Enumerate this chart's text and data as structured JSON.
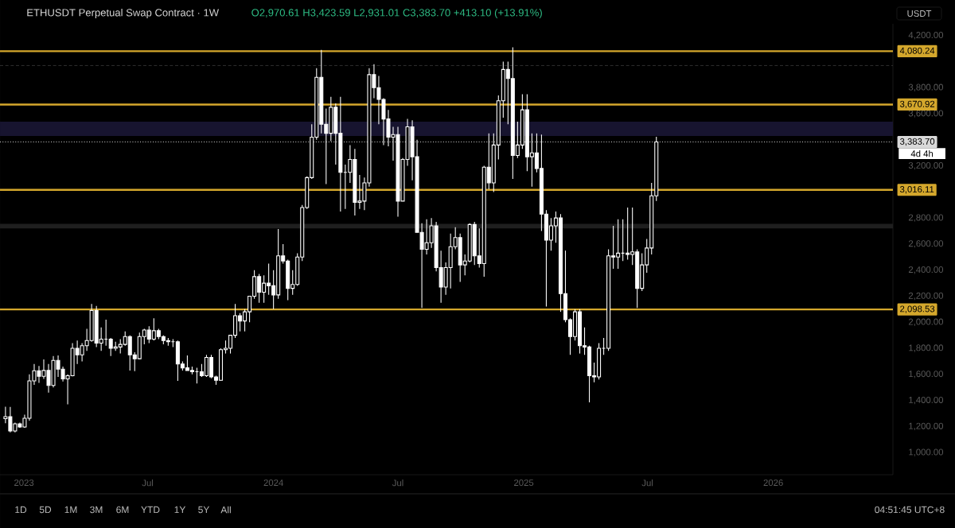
{
  "chart_data": {
    "type": "candlestick",
    "title": "ETHUSDT Perpetual Swap Contract · 1W",
    "subtitle": "O2,970.61 H3,423.59 L2,931.01 C3,383.70 +413.10 (+13.91%)",
    "color": "#ffffff",
    "x": [
      "2022-12-05",
      "2022-12-12",
      "2022-12-19",
      "2022-12-26",
      "2023-01-02",
      "2023-01-09",
      "2023-01-16",
      "2023-01-23",
      "2023-01-30",
      "2023-02-06",
      "2023-02-13",
      "2023-02-20",
      "2023-02-27",
      "2023-03-06",
      "2023-03-13",
      "2023-03-20",
      "2023-03-27",
      "2023-04-03",
      "2023-04-10",
      "2023-04-17",
      "2023-04-24",
      "2023-05-01",
      "2023-05-08",
      "2023-05-15",
      "2023-05-22",
      "2023-05-29",
      "2023-06-05",
      "2023-06-12",
      "2023-06-19",
      "2023-06-26",
      "2023-07-03",
      "2023-07-10",
      "2023-07-17",
      "2023-07-24",
      "2023-07-31",
      "2023-08-07",
      "2023-08-14",
      "2023-08-21",
      "2023-08-28",
      "2023-09-04",
      "2023-09-11",
      "2023-09-18",
      "2023-09-25",
      "2023-10-02",
      "2023-10-09",
      "2023-10-16",
      "2023-10-23",
      "2023-10-30",
      "2023-11-06",
      "2023-11-13",
      "2023-11-20",
      "2023-11-27",
      "2023-12-04",
      "2023-12-11",
      "2023-12-18",
      "2023-12-25",
      "2024-01-01",
      "2024-01-08",
      "2024-01-15",
      "2024-01-22",
      "2024-01-29",
      "2024-02-05",
      "2024-02-12",
      "2024-02-19",
      "2024-02-26",
      "2024-03-04",
      "2024-03-11",
      "2024-03-18",
      "2024-03-25",
      "2024-04-01",
      "2024-04-08",
      "2024-04-15",
      "2024-04-22",
      "2024-04-29",
      "2024-05-06",
      "2024-05-13",
      "2024-05-20",
      "2024-05-27",
      "2024-06-03",
      "2024-06-10",
      "2024-06-17",
      "2024-06-24",
      "2024-07-01",
      "2024-07-08",
      "2024-07-15",
      "2024-07-22",
      "2024-07-29",
      "2024-08-05",
      "2024-08-12",
      "2024-08-19",
      "2024-08-26",
      "2024-09-02",
      "2024-09-09",
      "2024-09-16",
      "2024-09-23",
      "2024-09-30",
      "2024-10-07",
      "2024-10-14",
      "2024-10-21",
      "2024-10-28",
      "2024-11-04",
      "2024-11-11",
      "2024-11-18",
      "2024-11-25",
      "2024-12-02",
      "2024-12-09",
      "2024-12-16",
      "2024-12-23",
      "2024-12-30",
      "2025-01-06",
      "2025-01-13",
      "2025-01-20",
      "2025-01-27",
      "2025-02-03",
      "2025-02-10",
      "2025-02-17",
      "2025-02-24",
      "2025-03-03",
      "2025-03-10",
      "2025-03-17",
      "2025-03-24",
      "2025-03-31",
      "2025-04-07",
      "2025-04-14",
      "2025-04-21",
      "2025-04-28",
      "2025-05-05",
      "2025-05-12",
      "2025-05-19",
      "2025-05-26",
      "2025-06-02",
      "2025-06-09",
      "2025-06-16",
      "2025-06-23",
      "2025-06-30",
      "2025-07-07",
      "2025-07-14"
    ],
    "ohlc": [
      [
        1260,
        1352,
        1225,
        1275
      ],
      [
        1275,
        1350,
        1155,
        1166
      ],
      [
        1166,
        1230,
        1155,
        1220
      ],
      [
        1220,
        1230,
        1190,
        1196
      ],
      [
        1196,
        1290,
        1190,
        1263
      ],
      [
        1263,
        1600,
        1245,
        1550
      ],
      [
        1550,
        1680,
        1520,
        1628
      ],
      [
        1628,
        1665,
        1535,
        1585
      ],
      [
        1585,
        1715,
        1565,
        1630
      ],
      [
        1630,
        1680,
        1460,
        1515
      ],
      [
        1515,
        1740,
        1500,
        1707
      ],
      [
        1707,
        1745,
        1580,
        1640
      ],
      [
        1640,
        1660,
        1545,
        1565
      ],
      [
        1565,
        1600,
        1370,
        1590
      ],
      [
        1590,
        1840,
        1585,
        1800
      ],
      [
        1800,
        1860,
        1680,
        1750
      ],
      [
        1750,
        1840,
        1700,
        1820
      ],
      [
        1820,
        1950,
        1780,
        1860
      ],
      [
        1860,
        2140,
        1850,
        2090
      ],
      [
        2090,
        2125,
        1810,
        1840
      ],
      [
        1840,
        1960,
        1780,
        1870
      ],
      [
        1870,
        2020,
        1820,
        1870
      ],
      [
        1870,
        1880,
        1740,
        1800
      ],
      [
        1800,
        1850,
        1780,
        1810
      ],
      [
        1810,
        1870,
        1760,
        1830
      ],
      [
        1830,
        1930,
        1820,
        1890
      ],
      [
        1890,
        1900,
        1630,
        1750
      ],
      [
        1750,
        1770,
        1625,
        1720
      ],
      [
        1720,
        1920,
        1715,
        1890
      ],
      [
        1890,
        1950,
        1830,
        1940
      ],
      [
        1940,
        1970,
        1840,
        1870
      ],
      [
        1870,
        2030,
        1860,
        1935
      ],
      [
        1935,
        1950,
        1870,
        1890
      ],
      [
        1890,
        1900,
        1830,
        1860
      ],
      [
        1860,
        1880,
        1820,
        1850
      ],
      [
        1850,
        1870,
        1810,
        1850
      ],
      [
        1850,
        1860,
        1550,
        1680
      ],
      [
        1680,
        1700,
        1630,
        1650
      ],
      [
        1650,
        1745,
        1630,
        1630
      ],
      [
        1630,
        1660,
        1600,
        1620
      ],
      [
        1620,
        1650,
        1530,
        1620
      ],
      [
        1620,
        1680,
        1580,
        1590
      ],
      [
        1590,
        1750,
        1580,
        1730
      ],
      [
        1730,
        1750,
        1570,
        1580
      ],
      [
        1580,
        1590,
        1520,
        1555
      ],
      [
        1555,
        1800,
        1550,
        1790
      ],
      [
        1790,
        1860,
        1760,
        1800
      ],
      [
        1800,
        1900,
        1760,
        1900
      ],
      [
        1900,
        2140,
        1880,
        2050
      ],
      [
        2050,
        2070,
        1930,
        2010
      ],
      [
        2010,
        2100,
        1930,
        2080
      ],
      [
        2080,
        2200,
        2000,
        2200
      ],
      [
        2200,
        2400,
        2180,
        2350
      ],
      [
        2350,
        2370,
        2150,
        2230
      ],
      [
        2230,
        2360,
        2150,
        2300
      ],
      [
        2300,
        2450,
        2210,
        2280
      ],
      [
        2280,
        2400,
        2100,
        2210
      ],
      [
        2210,
        2715,
        2180,
        2510
      ],
      [
        2510,
        2600,
        2450,
        2470
      ],
      [
        2470,
        2480,
        2170,
        2260
      ],
      [
        2260,
        2400,
        2210,
        2290
      ],
      [
        2290,
        2530,
        2280,
        2500
      ],
      [
        2500,
        2900,
        2470,
        2880
      ],
      [
        2880,
        3120,
        2870,
        3110
      ],
      [
        3110,
        3520,
        3100,
        3420
      ],
      [
        3420,
        3950,
        3400,
        3880
      ],
      [
        3880,
        4090,
        3450,
        3520
      ],
      [
        3520,
        3640,
        3060,
        3450
      ],
      [
        3450,
        3730,
        3390,
        3650
      ],
      [
        3650,
        3680,
        3210,
        3450
      ],
      [
        3450,
        3730,
        2850,
        3150
      ],
      [
        3150,
        3210,
        2870,
        3150
      ],
      [
        3150,
        3360,
        3070,
        3250
      ],
      [
        3250,
        3330,
        2820,
        2920
      ],
      [
        2920,
        3130,
        2870,
        2930
      ],
      [
        2930,
        3110,
        2860,
        3070
      ],
      [
        3070,
        3950,
        3040,
        3900
      ],
      [
        3900,
        3980,
        3720,
        3800
      ],
      [
        3800,
        3890,
        3520,
        3710
      ],
      [
        3710,
        3720,
        3360,
        3560
      ],
      [
        3560,
        3630,
        3350,
        3420
      ],
      [
        3420,
        3500,
        3240,
        3440
      ],
      [
        3440,
        3500,
        2810,
        2930
      ],
      [
        2930,
        3260,
        2930,
        3250
      ],
      [
        3250,
        3560,
        3200,
        3500
      ],
      [
        3500,
        3550,
        3090,
        3270
      ],
      [
        3270,
        3400,
        2690,
        2690
      ],
      [
        2690,
        2760,
        2110,
        2560
      ],
      [
        2560,
        2790,
        2520,
        2610
      ],
      [
        2610,
        2800,
        2570,
        2740
      ],
      [
        2740,
        2770,
        2390,
        2420
      ],
      [
        2420,
        2550,
        2150,
        2270
      ],
      [
        2270,
        2460,
        2210,
        2420
      ],
      [
        2420,
        2680,
        2260,
        2580
      ],
      [
        2580,
        2730,
        2560,
        2650
      ],
      [
        2650,
        2680,
        2310,
        2440
      ],
      [
        2440,
        2520,
        2360,
        2470
      ],
      [
        2470,
        2760,
        2460,
        2750
      ],
      [
        2750,
        2770,
        2440,
        2510
      ],
      [
        2510,
        2720,
        2420,
        2450
      ],
      [
        2450,
        3200,
        2350,
        3190
      ],
      [
        3190,
        3450,
        3020,
        3070
      ],
      [
        3070,
        3450,
        3000,
        3360
      ],
      [
        3360,
        3740,
        3250,
        3700
      ],
      [
        3700,
        4000,
        3570,
        3940
      ],
      [
        3940,
        4000,
        3520,
        3870
      ],
      [
        3870,
        4110,
        3100,
        3280
      ],
      [
        3280,
        3540,
        3260,
        3360
      ],
      [
        3360,
        3750,
        3330,
        3630
      ],
      [
        3630,
        3750,
        3160,
        3270
      ],
      [
        3270,
        3450,
        3040,
        3300
      ],
      [
        3300,
        3450,
        3150,
        3180
      ],
      [
        3180,
        3440,
        2700,
        2830
      ],
      [
        2830,
        2860,
        2120,
        2630
      ],
      [
        2630,
        2800,
        2550,
        2740
      ],
      [
        2740,
        2850,
        2610,
        2800
      ],
      [
        2800,
        2830,
        2080,
        2220
      ],
      [
        2220,
        2550,
        2000,
        2020
      ],
      [
        2020,
        2030,
        1750,
        1890
      ],
      [
        1890,
        2100,
        1860,
        2080
      ],
      [
        2080,
        2100,
        1760,
        1820
      ],
      [
        1820,
        1960,
        1750,
        1810
      ],
      [
        1810,
        1820,
        1385,
        1590
      ],
      [
        1590,
        1690,
        1540,
        1580
      ],
      [
        1580,
        1840,
        1560,
        1800
      ],
      [
        1800,
        1880,
        1750,
        1800
      ],
      [
        1800,
        2560,
        1780,
        2510
      ],
      [
        2510,
        2740,
        2410,
        2500
      ],
      [
        2500,
        2790,
        2410,
        2530
      ],
      [
        2530,
        2790,
        2470,
        2530
      ],
      [
        2530,
        2880,
        2480,
        2520
      ],
      [
        2520,
        2880,
        2440,
        2540
      ],
      [
        2540,
        2560,
        2110,
        2260
      ],
      [
        2260,
        2530,
        2240,
        2440
      ],
      [
        2440,
        2640,
        2380,
        2570
      ],
      [
        2570,
        3070,
        2520,
        2970.61
      ],
      [
        2970.61,
        3423.59,
        2931.01,
        3383.7
      ]
    ],
    "xlim": [
      "2022-11-27",
      "2026-06-25"
    ],
    "xticks": [
      {
        "value": "2023-01-01",
        "label": "2023"
      },
      {
        "value": "2023-07-01",
        "label": "Jul"
      },
      {
        "value": "2024-01-01",
        "label": "2024"
      },
      {
        "value": "2024-07-01",
        "label": "Jul"
      },
      {
        "value": "2025-01-01",
        "label": "2025"
      },
      {
        "value": "2025-07-01",
        "label": "Jul"
      },
      {
        "value": "2026-01-01",
        "label": "2026"
      }
    ],
    "ylim": [
      830,
      4290
    ],
    "yticks": [
      {
        "value": 4200,
        "label": "4,200.00"
      },
      {
        "value": 3800,
        "label": "3,800.00"
      },
      {
        "value": 3600,
        "label": "3,600.00"
      },
      {
        "value": 3200,
        "label": "3,200.00"
      },
      {
        "value": 2800,
        "label": "2,800.00"
      },
      {
        "value": 2600,
        "label": "2,600.00"
      },
      {
        "value": 2400,
        "label": "2,400.00"
      },
      {
        "value": 2200,
        "label": "2,200.00"
      },
      {
        "value": 2000,
        "label": "2,000.00"
      },
      {
        "value": 1800,
        "label": "1,800.00"
      },
      {
        "value": 1600,
        "label": "1,600.00"
      },
      {
        "value": 1400,
        "label": "1,400.00"
      },
      {
        "value": 1200,
        "label": "1,200.00"
      },
      {
        "value": 1000,
        "label": "1,000.00"
      }
    ],
    "bands": [
      {
        "axis": "y",
        "from": 3430,
        "to": 3540,
        "color": "#17142f"
      },
      {
        "axis": "y",
        "from": 2720,
        "to": 2755,
        "color": "#1f1f1f"
      }
    ],
    "ref_lines": [
      {
        "axis": "y",
        "value": 3970,
        "color": "#3a3a3a",
        "line_style": "dashed"
      },
      {
        "axis": "y",
        "value": 3383.7,
        "label": "3,383.70",
        "color": "#d9d9d9",
        "line_style": "dotted"
      },
      {
        "axis": "y",
        "value": 4080.24,
        "label": "4,080.24",
        "color": "#d4a72c",
        "line_style": "solid"
      },
      {
        "axis": "y",
        "value": 3670.92,
        "label": "3,670.92",
        "color": "#d4a72c",
        "line_style": "solid"
      },
      {
        "axis": "y",
        "value": 3016.11,
        "label": "3,016.11",
        "color": "#d4a72c",
        "line_style": "solid"
      },
      {
        "axis": "y",
        "value": 2098.53,
        "label": "2,098.53",
        "color": "#d4a72c",
        "line_style": "solid"
      }
    ],
    "annotations": [
      "USDT",
      "4d 4h",
      "1D",
      "5D",
      "1M",
      "3M",
      "6M",
      "YTD",
      "1Y",
      "5Y",
      "All",
      "04:51:45 UTC+8"
    ]
  }
}
